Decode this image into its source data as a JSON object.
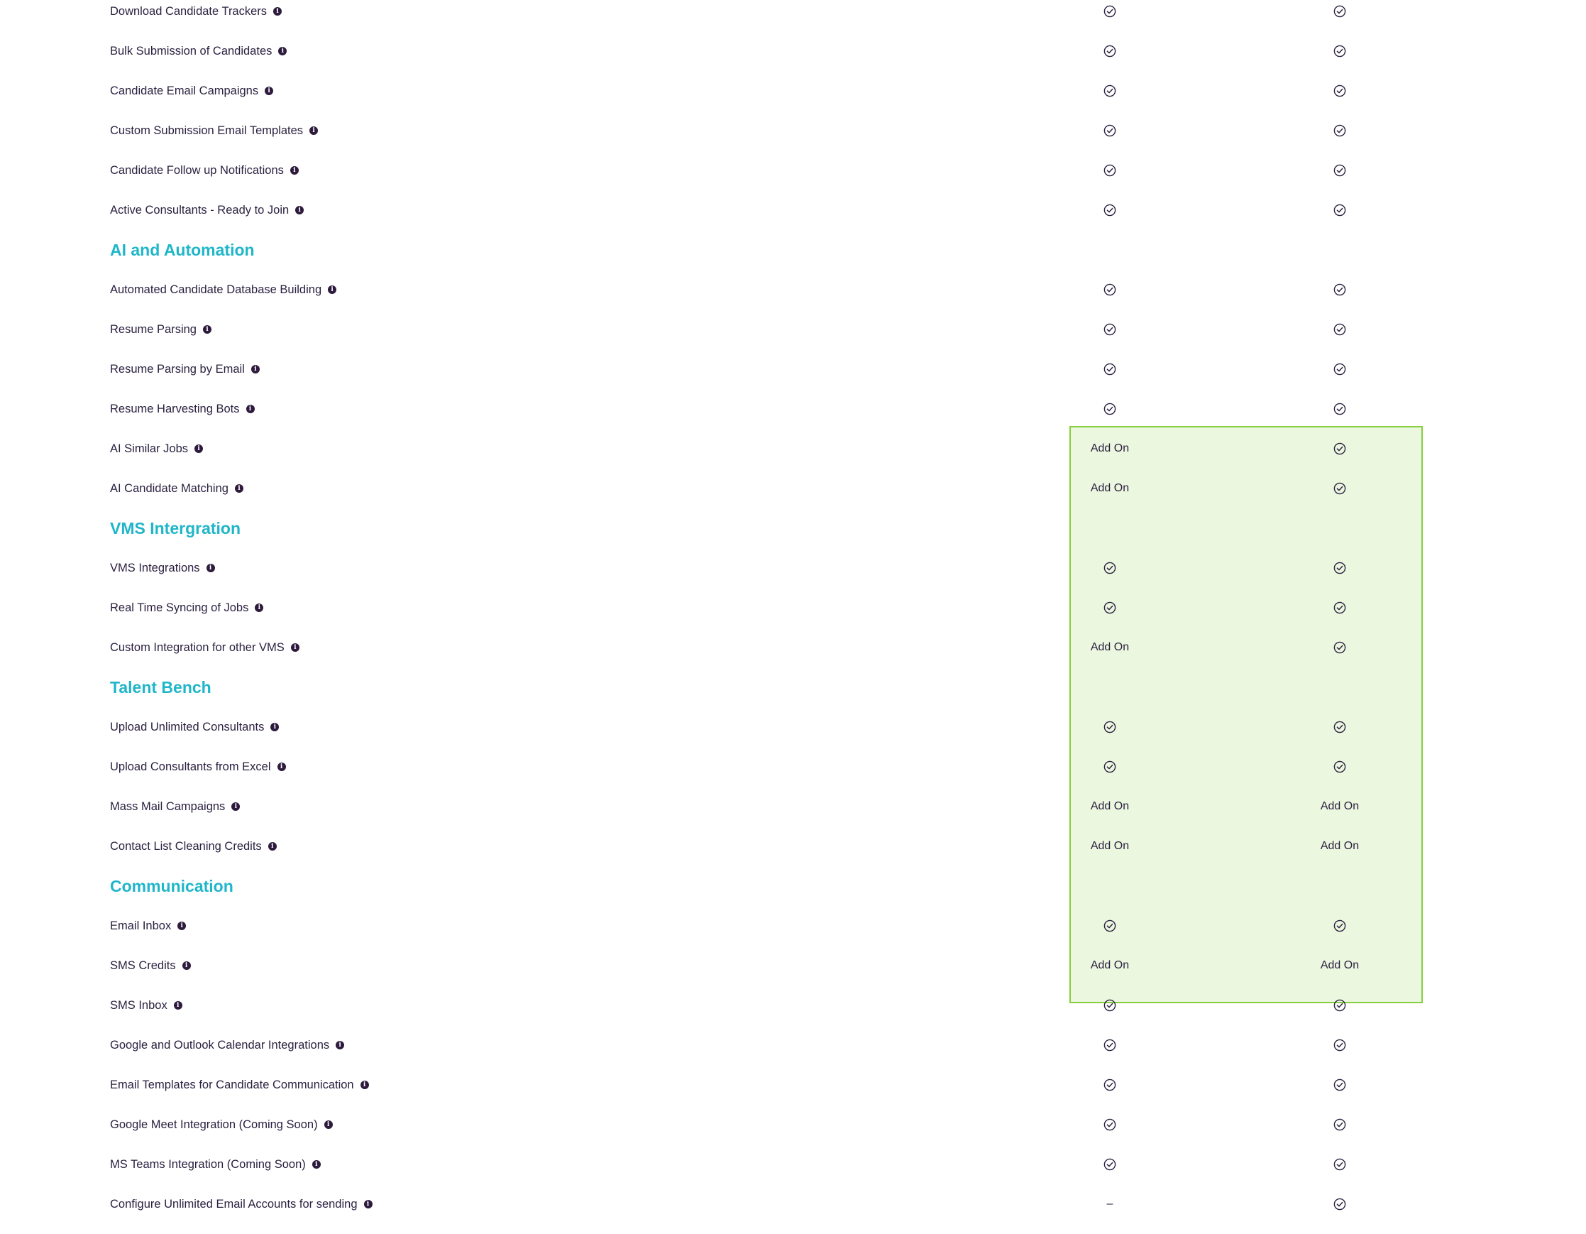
{
  "rows": [
    {
      "type": "feature",
      "label": "Download Candidate Trackers",
      "plan_1": "check",
      "plan_2": "check"
    },
    {
      "type": "feature",
      "label": "Bulk Submission of Candidates",
      "plan_1": "check",
      "plan_2": "check"
    },
    {
      "type": "feature",
      "label": "Candidate Email Campaigns",
      "plan_1": "check",
      "plan_2": "check"
    },
    {
      "type": "feature",
      "label": "Custom Submission Email Templates",
      "plan_1": "check",
      "plan_2": "check"
    },
    {
      "type": "feature",
      "label": "Candidate Follow up Notifications",
      "plan_1": "check",
      "plan_2": "check"
    },
    {
      "type": "feature",
      "label": "Active Consultants - Ready to Join",
      "plan_1": "check",
      "plan_2": "check"
    },
    {
      "type": "section",
      "label": "AI and Automation"
    },
    {
      "type": "feature",
      "label": "Automated Candidate Database Building",
      "plan_1": "check",
      "plan_2": "check"
    },
    {
      "type": "feature",
      "label": "Resume Parsing",
      "plan_1": "check",
      "plan_2": "check"
    },
    {
      "type": "feature",
      "label": "Resume Parsing by Email",
      "plan_1": "check",
      "plan_2": "check"
    },
    {
      "type": "feature",
      "label": "Resume Harvesting Bots",
      "plan_1": "check",
      "plan_2": "check"
    },
    {
      "type": "feature",
      "label": "AI Similar Jobs",
      "plan_1": "Add On",
      "plan_2": "check"
    },
    {
      "type": "feature",
      "label": "AI Candidate Matching",
      "plan_1": "Add On",
      "plan_2": "check"
    },
    {
      "type": "section",
      "label": "VMS Intergration"
    },
    {
      "type": "feature",
      "label": "VMS Integrations",
      "plan_1": "check",
      "plan_2": "check"
    },
    {
      "type": "feature",
      "label": "Real Time Syncing of Jobs",
      "plan_1": "check",
      "plan_2": "check"
    },
    {
      "type": "feature",
      "label": "Custom Integration for other VMS",
      "plan_1": "Add On",
      "plan_2": "check"
    },
    {
      "type": "section",
      "label": "Talent Bench"
    },
    {
      "type": "feature",
      "label": "Upload Unlimited Consultants",
      "plan_1": "check",
      "plan_2": "check"
    },
    {
      "type": "feature",
      "label": "Upload Consultants from Excel",
      "plan_1": "check",
      "plan_2": "check"
    },
    {
      "type": "feature",
      "label": "Mass Mail Campaigns",
      "plan_1": "Add On",
      "plan_2": "Add On"
    },
    {
      "type": "feature",
      "label": "Contact List Cleaning Credits",
      "plan_1": "Add On",
      "plan_2": "Add On"
    },
    {
      "type": "section",
      "label": "Communication"
    },
    {
      "type": "feature",
      "label": "Email Inbox",
      "plan_1": "check",
      "plan_2": "check"
    },
    {
      "type": "feature",
      "label": "SMS Credits",
      "plan_1": "Add On",
      "plan_2": "Add On"
    },
    {
      "type": "feature",
      "label": "SMS Inbox",
      "plan_1": "check",
      "plan_2": "check"
    },
    {
      "type": "feature",
      "label": "Google and Outlook Calendar Integrations",
      "plan_1": "check",
      "plan_2": "check"
    },
    {
      "type": "feature",
      "label": "Email Templates for Candidate Communication",
      "plan_1": "check",
      "plan_2": "check"
    },
    {
      "type": "feature",
      "label": "Google Meet Integration (Coming Soon)",
      "plan_1": "check",
      "plan_2": "check"
    },
    {
      "type": "feature",
      "label": "MS Teams Integration (Coming Soon)",
      "plan_1": "check",
      "plan_2": "check"
    },
    {
      "type": "feature",
      "label": "Configure Unlimited Email Accounts for sending",
      "plan_1": "–",
      "plan_2": "check"
    }
  ],
  "icons": {
    "info": "info-icon",
    "check": "check-circle-icon"
  },
  "colors": {
    "section_heading": "#1fb6c9",
    "text": "#2b2140",
    "info_icon": "#2d1a3c",
    "highlight_fill": "#ecf7df",
    "highlight_border": "#86cf3c"
  }
}
